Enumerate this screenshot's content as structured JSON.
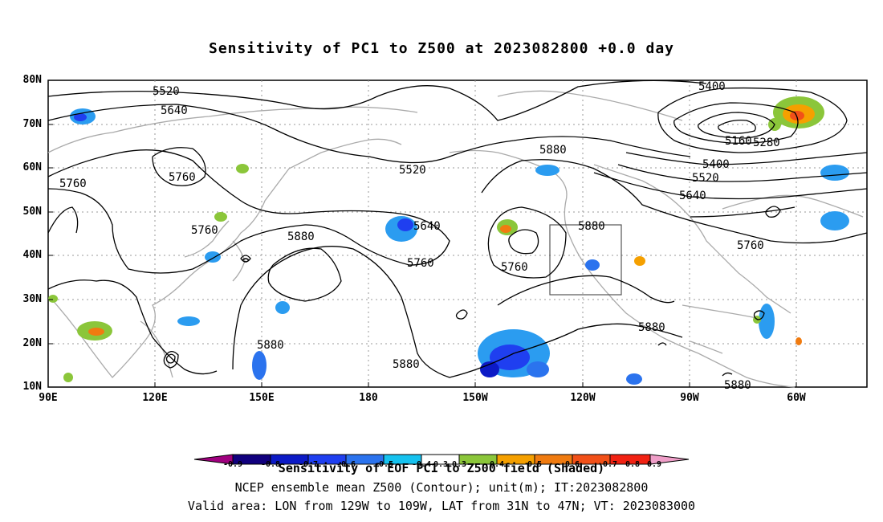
{
  "title": "Sensitivity of PC1 to Z500 at 2023082800 +0.0 day",
  "latitudes": [
    "80N",
    "70N",
    "60N",
    "50N",
    "40N",
    "30N",
    "20N",
    "10N"
  ],
  "longitudes": [
    "90E",
    "120E",
    "150E",
    "180",
    "150W",
    "120W",
    "90W",
    "60W"
  ],
  "contour_labels": [
    "5520",
    "5640",
    "5760",
    "5760",
    "5760",
    "5880",
    "5520",
    "5640",
    "5760",
    "5760",
    "5880",
    "5880",
    "5880",
    "5400",
    "5160",
    "5280",
    "5400",
    "5520",
    "5640",
    "5760",
    "5880",
    "5880",
    "5880"
  ],
  "valid_area": {
    "lon_from": "129W",
    "lon_to": "109W",
    "lat_from": "31N",
    "lat_to": "47N"
  },
  "colorbar": {
    "ticks": [
      "-0.9",
      "-0.8",
      "-0.7",
      "-0.6",
      "-0.5",
      "-0.4",
      "-0.3",
      "0.3",
      "0.4",
      "0.5",
      "0.6",
      "0.7",
      "0.8",
      "0.9"
    ],
    "colors": [
      "#a0007f",
      "#11007e",
      "#0c1ac6",
      "#1f3ff0",
      "#2b73ee",
      "#2b9cf0",
      "#16c2ef",
      "#ffffff",
      "#8bc63a",
      "#f5a000",
      "#f07b10",
      "#f25018",
      "#f22213",
      "#ef9ec8"
    ]
  },
  "footer": {
    "line1": "Sensitivity of EOF PC1 to Z500 field (Shaded)",
    "line2": "NCEP ensemble mean Z500 (Contour); unit(m); IT:2023082800",
    "line3": "Valid area: LON from 129W to 109W, LAT from 31N to 47N; VT: 2023083000"
  }
}
